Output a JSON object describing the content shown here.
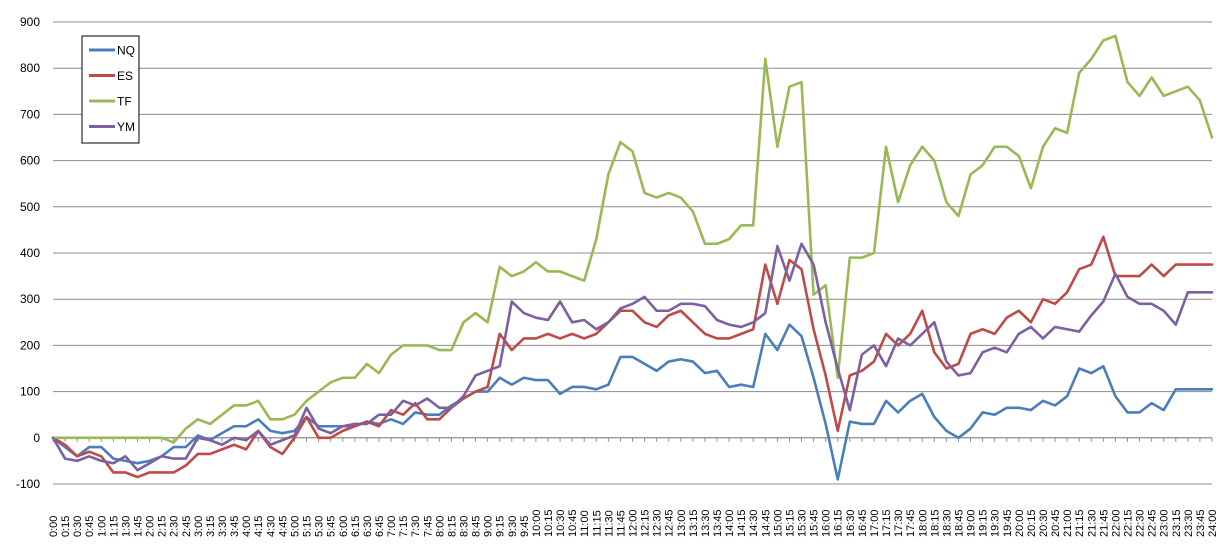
{
  "chart_data": {
    "type": "line",
    "title": "",
    "xlabel": "",
    "ylabel": "",
    "ylim": [
      -100,
      900
    ],
    "yticks": [
      -100,
      0,
      100,
      200,
      300,
      400,
      500,
      600,
      700,
      800,
      900
    ],
    "grid": "horizontal",
    "legend_position": "top-left",
    "x": [
      "0:00",
      "0:15",
      "0:30",
      "0:45",
      "1:00",
      "1:15",
      "1:30",
      "1:45",
      "2:00",
      "2:15",
      "2:30",
      "2:45",
      "3:00",
      "3:15",
      "3:30",
      "3:45",
      "4:00",
      "4:15",
      "4:30",
      "4:45",
      "5:00",
      "5:15",
      "5:30",
      "5:45",
      "6:00",
      "6:15",
      "6:30",
      "6:45",
      "7:00",
      "7:15",
      "7:30",
      "7:45",
      "8:00",
      "8:15",
      "8:30",
      "8:45",
      "9:00",
      "9:15",
      "9:30",
      "9:45",
      "10:00",
      "10:15",
      "10:30",
      "10:45",
      "11:00",
      "11:15",
      "11:30",
      "11:45",
      "12:00",
      "12:15",
      "12:30",
      "12:45",
      "13:00",
      "13:15",
      "13:30",
      "13:45",
      "14:00",
      "14:15",
      "14:30",
      "14:45",
      "15:00",
      "15:15",
      "15:30",
      "15:45",
      "16:00",
      "16:15",
      "16:30",
      "16:45",
      "17:00",
      "17:15",
      "17:30",
      "17:45",
      "18:00",
      "18:15",
      "18:30",
      "18:45",
      "19:00",
      "19:15",
      "19:30",
      "19:45",
      "20:00",
      "20:15",
      "20:30",
      "20:45",
      "21:00",
      "21:15",
      "21:30",
      "21:45",
      "22:00",
      "22:15",
      "22:30",
      "22:45",
      "23:00",
      "23:15",
      "23:30",
      "23:45",
      "24:00"
    ],
    "series": [
      {
        "name": "NQ",
        "color": "#4a7ebb",
        "values": [
          0,
          -20,
          -40,
          -20,
          -20,
          -45,
          -50,
          -55,
          -50,
          -40,
          -20,
          -20,
          5,
          -5,
          10,
          25,
          25,
          40,
          15,
          10,
          15,
          45,
          25,
          25,
          25,
          25,
          35,
          30,
          40,
          30,
          55,
          50,
          50,
          70,
          85,
          100,
          100,
          130,
          115,
          130,
          125,
          125,
          95,
          110,
          110,
          105,
          115,
          175,
          175,
          160,
          145,
          165,
          170,
          165,
          140,
          145,
          110,
          115,
          110,
          225,
          190,
          245,
          220,
          130,
          30,
          -90,
          35,
          30,
          30,
          80,
          55,
          80,
          95,
          45,
          15,
          0,
          20,
          55,
          50,
          65,
          65,
          60,
          80,
          70,
          90,
          150,
          140,
          155,
          90,
          55,
          55,
          75,
          60,
          105,
          105,
          105,
          105
        ]
      },
      {
        "name": "ES",
        "color": "#be4b48",
        "values": [
          0,
          -15,
          -40,
          -30,
          -40,
          -75,
          -75,
          -85,
          -75,
          -75,
          -75,
          -60,
          -35,
          -35,
          -25,
          -15,
          -25,
          15,
          -20,
          -35,
          0,
          45,
          0,
          0,
          15,
          25,
          35,
          25,
          60,
          50,
          75,
          40,
          40,
          65,
          85,
          100,
          110,
          225,
          190,
          215,
          215,
          225,
          215,
          225,
          215,
          225,
          250,
          275,
          275,
          250,
          240,
          265,
          275,
          250,
          225,
          215,
          215,
          225,
          235,
          375,
          290,
          385,
          365,
          235,
          135,
          15,
          135,
          145,
          165,
          225,
          200,
          225,
          275,
          185,
          150,
          160,
          225,
          235,
          225,
          260,
          275,
          250,
          300,
          290,
          315,
          365,
          375,
          435,
          350,
          350,
          350,
          375,
          350,
          375,
          375,
          375,
          375
        ]
      },
      {
        "name": "TF",
        "color": "#98b954",
        "values": [
          0,
          0,
          0,
          0,
          0,
          0,
          0,
          0,
          0,
          0,
          -10,
          20,
          40,
          30,
          50,
          70,
          70,
          80,
          40,
          40,
          50,
          80,
          100,
          120,
          130,
          130,
          160,
          140,
          180,
          200,
          200,
          200,
          190,
          190,
          250,
          270,
          250,
          370,
          350,
          360,
          380,
          360,
          360,
          350,
          340,
          430,
          570,
          640,
          620,
          530,
          520,
          530,
          520,
          490,
          420,
          420,
          430,
          460,
          460,
          820,
          630,
          760,
          770,
          310,
          330,
          130,
          390,
          390,
          400,
          630,
          510,
          590,
          630,
          600,
          510,
          480,
          570,
          590,
          630,
          630,
          610,
          540,
          630,
          670,
          660,
          790,
          820,
          860,
          870,
          770,
          740,
          780,
          740,
          750,
          760,
          730,
          650
        ]
      },
      {
        "name": "YM",
        "color": "#7d60a0",
        "values": [
          0,
          -45,
          -50,
          -40,
          -50,
          -55,
          -40,
          -70,
          -55,
          -40,
          -45,
          -45,
          0,
          -5,
          -15,
          0,
          -5,
          15,
          -15,
          -5,
          5,
          65,
          20,
          10,
          25,
          30,
          30,
          50,
          50,
          80,
          70,
          85,
          65,
          65,
          90,
          135,
          145,
          155,
          295,
          270,
          260,
          255,
          295,
          250,
          255,
          235,
          250,
          280,
          290,
          305,
          275,
          275,
          290,
          290,
          285,
          255,
          245,
          240,
          250,
          270,
          415,
          340,
          420,
          375,
          250,
          150,
          60,
          180,
          200,
          155,
          215,
          200,
          225,
          250,
          165,
          135,
          140,
          185,
          195,
          185,
          225,
          240,
          215,
          240,
          235,
          230,
          265,
          295,
          355,
          305,
          290,
          290,
          275,
          245,
          315,
          315,
          315
        ]
      }
    ]
  }
}
